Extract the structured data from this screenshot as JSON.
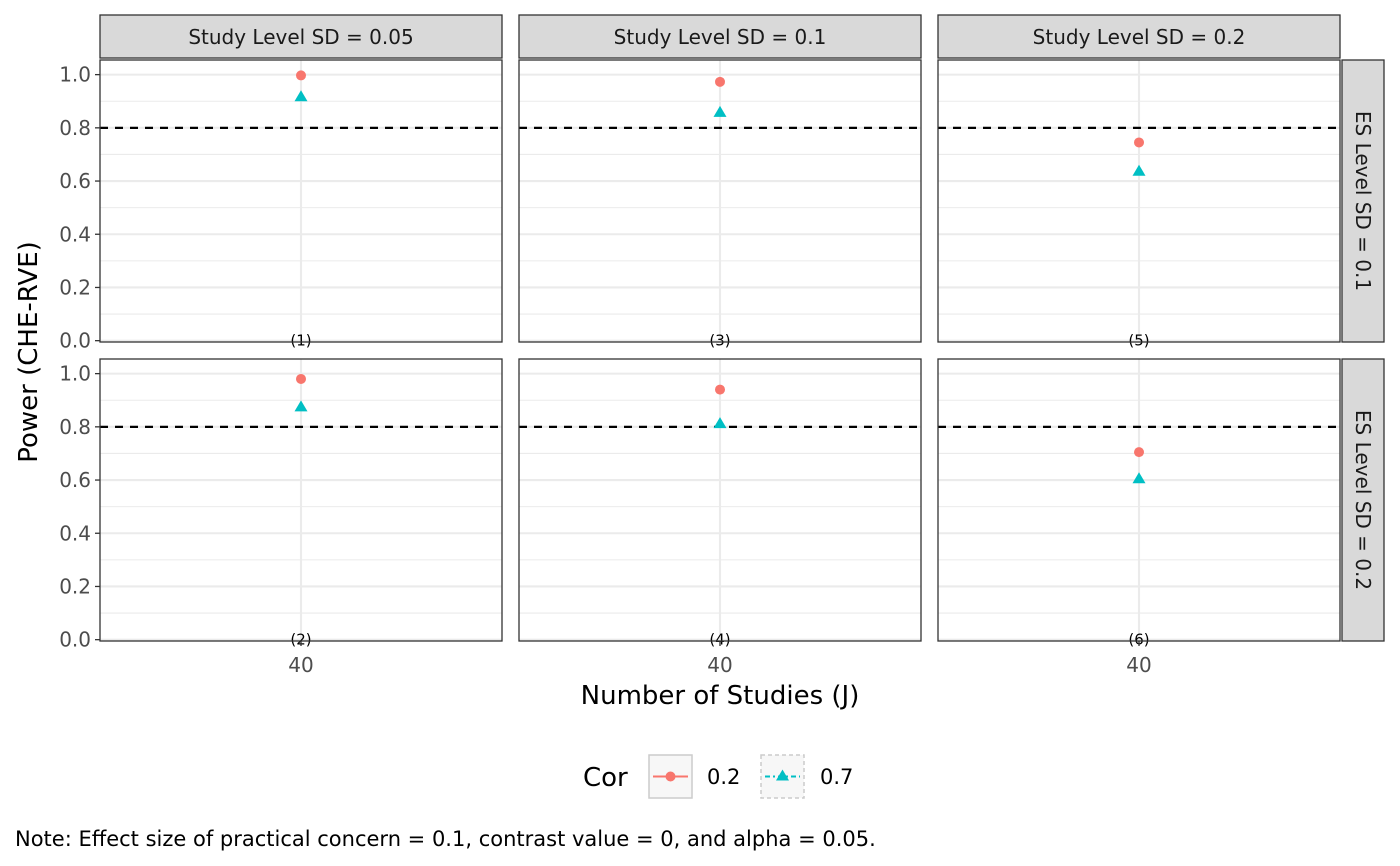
{
  "chart_data": {
    "type": "scatter",
    "xlabel": "Number of Studies (J)",
    "ylabel": "Power (CHE-RVE)",
    "x_ticks": [
      "40"
    ],
    "y_ticks": [
      "0.0",
      "0.2",
      "0.4",
      "0.6",
      "0.8",
      "1.0"
    ],
    "ylim": [
      -0.005,
      1.055
    ],
    "reference_line": 0.8,
    "col_facets": [
      "Study Level SD = 0.05",
      "Study Level SD = 0.1",
      "Study Level SD = 0.2"
    ],
    "row_facets": [
      "ES Level SD = 0.1",
      "ES Level SD = 0.2"
    ],
    "legend": {
      "title": "Cor",
      "placement": "bottom",
      "items": [
        {
          "label": "0.2",
          "color": "#F8766D",
          "shape": "circle"
        },
        {
          "label": "0.7",
          "color": "#00BFC4",
          "shape": "triangle"
        }
      ]
    },
    "panels": [
      {
        "row": 0,
        "col": 0,
        "tag": "(1)",
        "x": 40,
        "values": [
          0.997,
          0.917
        ]
      },
      {
        "row": 0,
        "col": 1,
        "tag": "(3)",
        "x": 40,
        "values": [
          0.973,
          0.858
        ]
      },
      {
        "row": 0,
        "col": 2,
        "tag": "(5)",
        "x": 40,
        "values": [
          0.745,
          0.637
        ]
      },
      {
        "row": 1,
        "col": 0,
        "tag": "(2)",
        "x": 40,
        "values": [
          0.98,
          0.875
        ]
      },
      {
        "row": 1,
        "col": 1,
        "tag": "(4)",
        "x": 40,
        "values": [
          0.94,
          0.812
        ]
      },
      {
        "row": 1,
        "col": 2,
        "tag": "(6)",
        "x": 40,
        "values": [
          0.705,
          0.605
        ]
      }
    ],
    "grid": true
  },
  "note": "Note: Effect size of practical concern = 0.1, contrast value = 0, and alpha = 0.05."
}
